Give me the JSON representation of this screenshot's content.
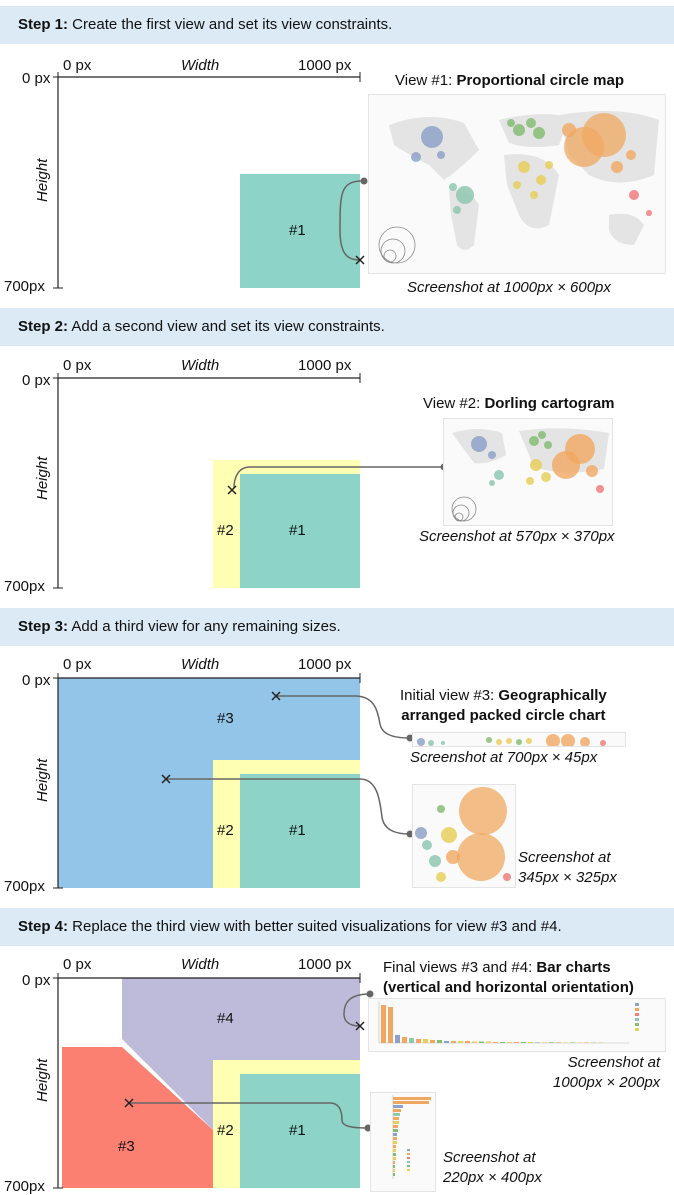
{
  "axes": {
    "x_start": "0 px",
    "x_label": "Width",
    "x_end": "1000 px",
    "y_start": "0 px",
    "y_label": "Height",
    "y_end": "700px"
  },
  "colors": {
    "header_bg": "#dbeaf5",
    "view1": "#8dd3c7",
    "view2": "#ffffb3",
    "view3_initial": "#93c5e8",
    "view4": "#bebada",
    "view3_final": "#fb8072"
  },
  "steps": [
    {
      "prefix": "Step 1:",
      "text": " Create the first view and set its view constraints.",
      "view_label_prefix": "View  #1: ",
      "view_label_bold": "Proportional circle map",
      "captions": [
        "Screenshot at 1000px × 600px"
      ],
      "regions": [
        "#1"
      ]
    },
    {
      "prefix": "Step 2:",
      "text": " Add a second view and set its view constraints.",
      "view_label_prefix": "View #2: ",
      "view_label_bold": "Dorling cartogram",
      "captions": [
        "Screenshot at 570px × 370px"
      ],
      "regions": [
        "#2",
        "#1"
      ]
    },
    {
      "prefix": "Step 3:",
      "text": " Add a third view for any remaining sizes.",
      "view_label_prefix": "Initial view #3: ",
      "view_label_bold": "Geographically",
      "view_label_bold2": "arranged packed circle chart",
      "captions": [
        "Screenshot at 700px × 45px",
        "Screenshot at",
        "345px × 325px"
      ],
      "regions": [
        "#3",
        "#2",
        "#1"
      ]
    },
    {
      "prefix": "Step 4:",
      "text": " Replace the third view with better suited visualizations for view #3 and #4.",
      "view_label_prefix": "Final views #3 and #4: ",
      "view_label_bold": "Bar charts",
      "view_label_bold2": "(vertical and horizontal orientation)",
      "captions": [
        "Screenshot at",
        "1000px × 200px",
        "Screenshot at",
        "220px × 400px"
      ],
      "regions": [
        "#4",
        "#3",
        "#2",
        "#1"
      ]
    }
  ]
}
